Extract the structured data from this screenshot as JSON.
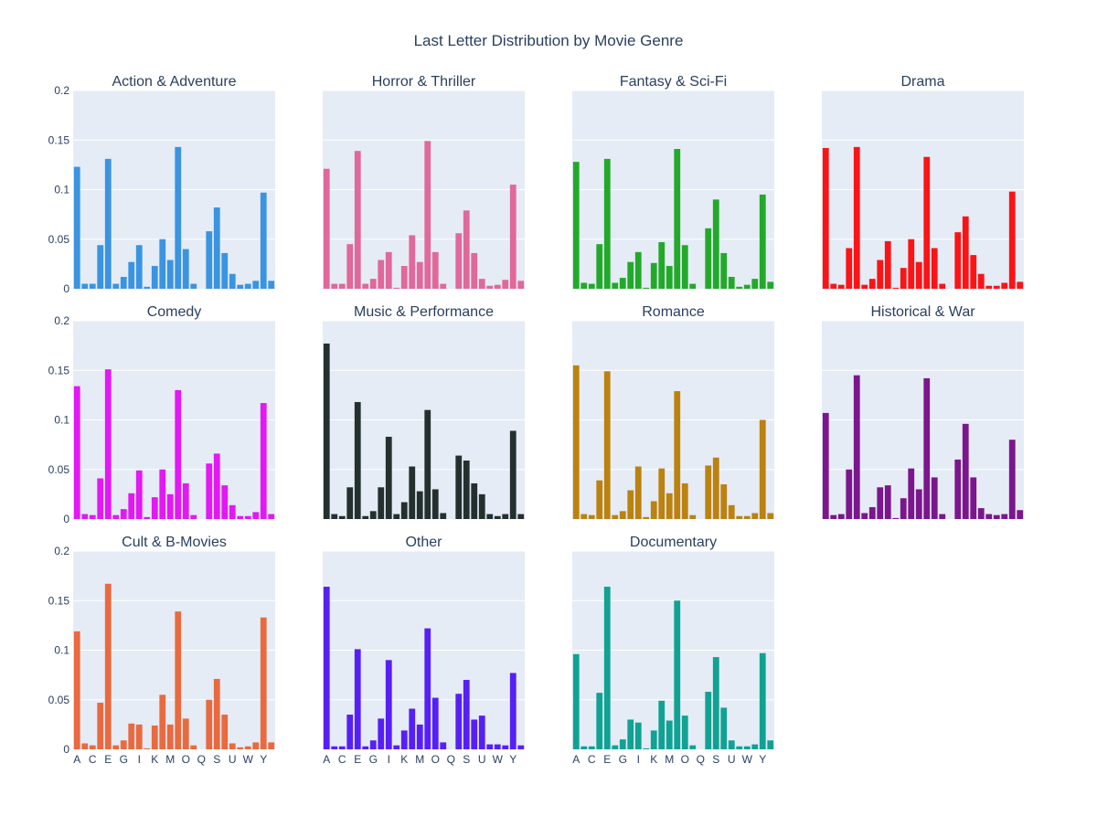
{
  "chart_data": {
    "type": "bar",
    "title": "Last Letter Distribution by Movie Genre",
    "categories": [
      "A",
      "B",
      "C",
      "D",
      "E",
      "F",
      "G",
      "H",
      "I",
      "J",
      "K",
      "L",
      "M",
      "N",
      "O",
      "P",
      "Q",
      "R",
      "S",
      "T",
      "U",
      "V",
      "W",
      "X",
      "Y",
      "Z"
    ],
    "tick_labels": [
      "A",
      "C",
      "E",
      "G",
      "I",
      "K",
      "M",
      "O",
      "Q",
      "S",
      "U",
      "W",
      "Y"
    ],
    "ylim": [
      0,
      0.2
    ],
    "yticks": [
      0,
      0.05,
      0.1,
      0.15,
      0.2
    ],
    "ytick_labels": [
      "0",
      "0.05",
      "0.1",
      "0.15",
      "0.2"
    ],
    "grid": true,
    "layout": "4 columns x 3 rows, shared axes",
    "series": [
      {
        "name": "Action & Adventure",
        "color": "#3a94e0",
        "values": [
          0.123,
          0.005,
          0.005,
          0.044,
          0.131,
          0.005,
          0.012,
          0.027,
          0.044,
          0.002,
          0.023,
          0.05,
          0.029,
          0.143,
          0.04,
          0.005,
          0.0,
          0.058,
          0.082,
          0.036,
          0.015,
          0.004,
          0.005,
          0.008,
          0.097,
          0.008
        ]
      },
      {
        "name": "Horror & Thriller",
        "color": "#e0689a",
        "values": [
          0.121,
          0.005,
          0.005,
          0.045,
          0.139,
          0.005,
          0.01,
          0.029,
          0.037,
          0.001,
          0.023,
          0.054,
          0.027,
          0.149,
          0.037,
          0.005,
          0.0,
          0.056,
          0.079,
          0.036,
          0.01,
          0.003,
          0.004,
          0.009,
          0.105,
          0.008
        ]
      },
      {
        "name": "Fantasy & Sci-Fi",
        "color": "#23a92a",
        "values": [
          0.128,
          0.006,
          0.005,
          0.045,
          0.131,
          0.006,
          0.011,
          0.027,
          0.037,
          0.001,
          0.026,
          0.047,
          0.023,
          0.141,
          0.044,
          0.005,
          0.0,
          0.061,
          0.09,
          0.036,
          0.012,
          0.002,
          0.004,
          0.01,
          0.095,
          0.007
        ]
      },
      {
        "name": "Drama",
        "color": "#fb1416",
        "values": [
          0.142,
          0.005,
          0.004,
          0.041,
          0.143,
          0.004,
          0.01,
          0.029,
          0.048,
          0.001,
          0.021,
          0.05,
          0.027,
          0.133,
          0.041,
          0.005,
          0.0,
          0.057,
          0.073,
          0.034,
          0.015,
          0.003,
          0.003,
          0.006,
          0.098,
          0.007
        ]
      },
      {
        "name": "Comedy",
        "color": "#e417f5",
        "values": [
          0.134,
          0.005,
          0.004,
          0.041,
          0.151,
          0.004,
          0.01,
          0.026,
          0.049,
          0.002,
          0.022,
          0.05,
          0.025,
          0.13,
          0.036,
          0.004,
          0.0,
          0.056,
          0.066,
          0.034,
          0.014,
          0.003,
          0.003,
          0.007,
          0.117,
          0.005
        ]
      },
      {
        "name": "Music & Performance",
        "color": "#24302e",
        "values": [
          0.177,
          0.005,
          0.003,
          0.032,
          0.118,
          0.003,
          0.008,
          0.032,
          0.083,
          0.005,
          0.017,
          0.053,
          0.028,
          0.11,
          0.03,
          0.006,
          0.0,
          0.064,
          0.059,
          0.036,
          0.025,
          0.005,
          0.003,
          0.005,
          0.089,
          0.005
        ]
      },
      {
        "name": "Romance",
        "color": "#bb820f",
        "values": [
          0.155,
          0.005,
          0.004,
          0.039,
          0.149,
          0.004,
          0.008,
          0.029,
          0.053,
          0.002,
          0.018,
          0.051,
          0.026,
          0.129,
          0.036,
          0.004,
          0.0,
          0.054,
          0.062,
          0.035,
          0.014,
          0.003,
          0.003,
          0.006,
          0.1,
          0.006
        ]
      },
      {
        "name": "Historical & War",
        "color": "#7b168d",
        "values": [
          0.107,
          0.004,
          0.005,
          0.05,
          0.145,
          0.006,
          0.012,
          0.032,
          0.034,
          0.001,
          0.021,
          0.051,
          0.03,
          0.142,
          0.042,
          0.005,
          0.0,
          0.06,
          0.096,
          0.042,
          0.011,
          0.005,
          0.004,
          0.005,
          0.08,
          0.009
        ]
      },
      {
        "name": "Cult & B-Movies",
        "color": "#e96a3e",
        "values": [
          0.119,
          0.006,
          0.004,
          0.047,
          0.167,
          0.004,
          0.009,
          0.026,
          0.025,
          0.001,
          0.024,
          0.055,
          0.025,
          0.139,
          0.031,
          0.004,
          0.0,
          0.05,
          0.071,
          0.035,
          0.006,
          0.002,
          0.003,
          0.007,
          0.133,
          0.007
        ]
      },
      {
        "name": "Other",
        "color": "#5620f5",
        "values": [
          0.164,
          0.003,
          0.003,
          0.035,
          0.101,
          0.003,
          0.009,
          0.031,
          0.09,
          0.004,
          0.019,
          0.041,
          0.025,
          0.122,
          0.052,
          0.007,
          0.0,
          0.056,
          0.07,
          0.03,
          0.034,
          0.005,
          0.005,
          0.004,
          0.077,
          0.004
        ]
      },
      {
        "name": "Documentary",
        "color": "#10a292",
        "values": [
          0.096,
          0.003,
          0.003,
          0.057,
          0.164,
          0.004,
          0.01,
          0.03,
          0.027,
          0.001,
          0.019,
          0.049,
          0.029,
          0.15,
          0.034,
          0.004,
          0.0,
          0.058,
          0.093,
          0.042,
          0.009,
          0.003,
          0.003,
          0.005,
          0.097,
          0.009
        ]
      }
    ]
  }
}
